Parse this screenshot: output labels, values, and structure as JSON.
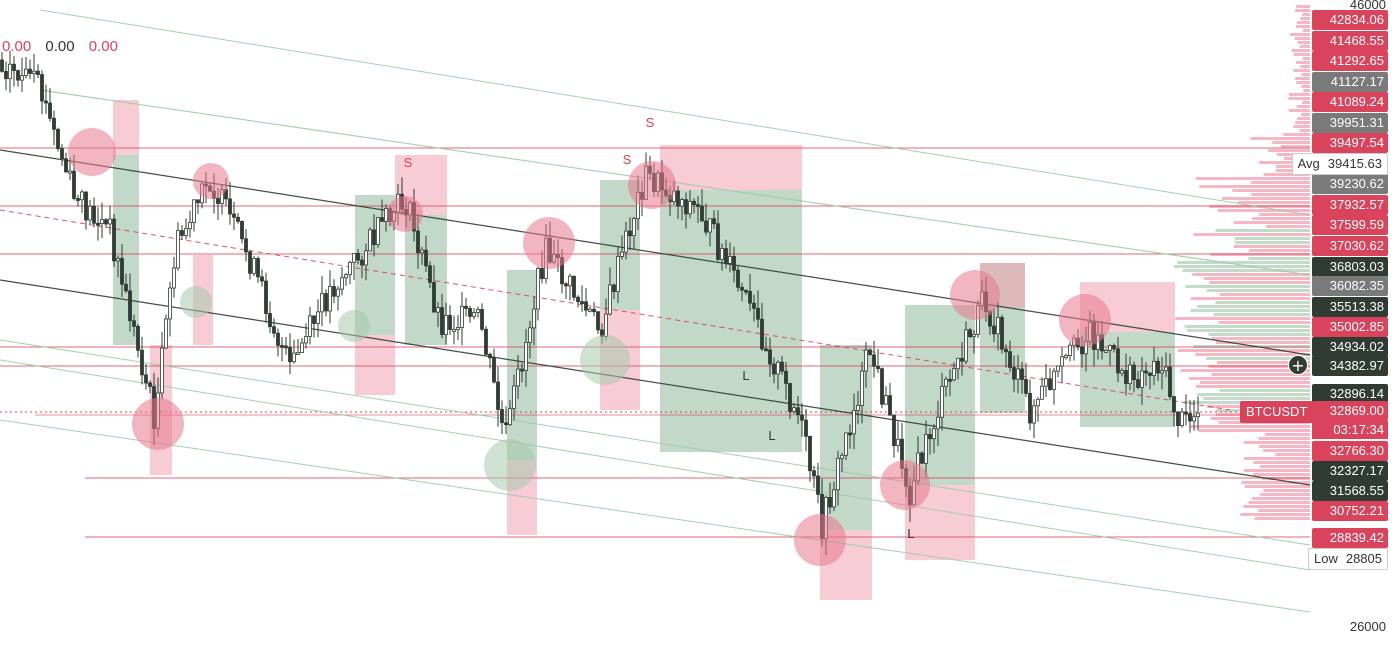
{
  "indicators": [
    "0.00",
    "0.00",
    "0.00"
  ],
  "symbol": "BTCUSDT",
  "countdown": "03:17:34",
  "avg_label": "Avg",
  "low_label": "Low",
  "chart_data": {
    "type": "candlestick",
    "ylim": [
      25500,
      46000
    ],
    "axis_ticks": [
      46000,
      26000
    ],
    "current_price": 32869.0,
    "avg": 39415.63,
    "low": 28805.0,
    "price_tags": [
      {
        "value": "42834.06",
        "color": "#d9435c"
      },
      {
        "value": "41468.55",
        "color": "#d9435c"
      },
      {
        "value": "41292.65",
        "color": "#d9435c"
      },
      {
        "value": "41127.17",
        "color": "#7a7a7a"
      },
      {
        "value": "41089.24",
        "color": "#d9435c"
      },
      {
        "value": "39951.31",
        "color": "#7a7a7a"
      },
      {
        "value": "39497.54",
        "color": "#d9435c"
      },
      {
        "value": "39230.62",
        "color": "#7a7a7a"
      },
      {
        "value": "37932.57",
        "color": "#d9435c"
      },
      {
        "value": "37599.59",
        "color": "#d9435c"
      },
      {
        "value": "37030.62",
        "color": "#d9435c"
      },
      {
        "value": "36803.03",
        "color": "#2f3b33"
      },
      {
        "value": "36082.35",
        "color": "#7a7a7a"
      },
      {
        "value": "35513.38",
        "color": "#2f3b33"
      },
      {
        "value": "35002.85",
        "color": "#d9435c"
      },
      {
        "value": "34934.02",
        "color": "#2f3b33"
      },
      {
        "value": "34382.97",
        "color": "#2f3b33"
      },
      {
        "value": "32896.14",
        "color": "#2f3b33"
      },
      {
        "value": "32766.30",
        "color": "#d9435c"
      },
      {
        "value": "32327.17",
        "color": "#2f3b33"
      },
      {
        "value": "31568.55",
        "color": "#2f3b33"
      },
      {
        "value": "30752.21",
        "color": "#d9435c"
      },
      {
        "value": "28839.42",
        "color": "#d9435c"
      }
    ],
    "signal_labels": [
      "S",
      "S",
      "S",
      "L",
      "L",
      "L"
    ],
    "colors": {
      "up": "#2f3b33",
      "down": "#2f3b33",
      "sell": "#d9435c",
      "buy_zone": "#8fb89a",
      "sell_zone": "#f2a3b3",
      "channel": "#2f3b33",
      "channel_light": "#9ec9a8"
    }
  }
}
